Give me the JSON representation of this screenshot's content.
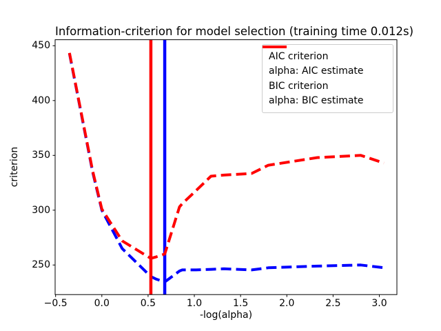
{
  "figure": {
    "title": "Information-criterion for model selection (training time 0.012s)",
    "background": "#ffffff"
  },
  "chart_data": {
    "type": "line",
    "title": "Information-criterion for model selection (training time 0.012s)",
    "xlabel": "-log(alpha)",
    "ylabel": "criterion",
    "xlim": [
      -0.505,
      3.19
    ],
    "ylim": [
      223,
      455.5
    ],
    "xticks": [
      -0.5,
      0.0,
      0.5,
      1.0,
      1.5,
      2.0,
      2.5,
      3.0
    ],
    "yticks": [
      250,
      300,
      350,
      400,
      450
    ],
    "grid": false,
    "legend_position": "upper right",
    "axis_color": "#000000",
    "series": [
      {
        "key": "aic-criterion",
        "name": "AIC criterion",
        "color": "#0000ff",
        "style": "dashed",
        "x": [
          -0.35,
          -0.1,
          0.0,
          0.22,
          0.53,
          0.59,
          0.68,
          0.84,
          0.87,
          1.02,
          1.18,
          1.32,
          1.62,
          1.8,
          2.33,
          2.8,
          3.05
        ],
        "y": [
          443,
          335,
          300,
          265,
          239.5,
          237,
          234.5,
          244.5,
          245.5,
          245.5,
          246,
          246.5,
          245.5,
          247.5,
          249,
          250,
          247.5
        ]
      },
      {
        "key": "alpha-aic-estimate",
        "name": "alpha: AIC estimate",
        "color": "#0000ff",
        "style": "vline",
        "x": 0.68
      },
      {
        "key": "bic-criterion",
        "name": "BIC criterion",
        "color": "#ff0000",
        "style": "dashed",
        "x": [
          -0.35,
          -0.1,
          0.0,
          0.22,
          0.53,
          0.59,
          0.68,
          0.84,
          0.87,
          1.02,
          1.18,
          1.32,
          1.62,
          1.8,
          2.33,
          2.8,
          3.05
        ],
        "y": [
          443.5,
          336,
          301,
          272,
          256,
          257.5,
          260,
          303,
          306,
          318,
          331,
          332,
          333.5,
          341,
          348,
          350,
          343
        ]
      },
      {
        "key": "alpha-bic-estimate",
        "name": "alpha: BIC estimate",
        "color": "#ff0000",
        "style": "vline",
        "x": 0.53
      }
    ]
  }
}
